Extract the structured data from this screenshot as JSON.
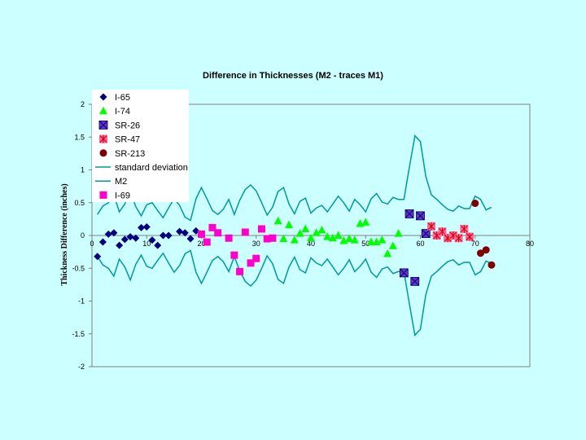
{
  "chart_data": {
    "type": "scatter",
    "title": "Difference in Thicknesses (M2 - traces M1)",
    "xlabel": "",
    "ylabel": "Thickness Difference (inches)",
    "xlim": [
      0,
      80
    ],
    "ylim": [
      -2,
      2
    ],
    "x_ticks": [
      "0",
      "10",
      "20",
      "30",
      "40",
      "50",
      "60",
      "70",
      "80"
    ],
    "y_ticks": [
      "2",
      "1.5",
      "1",
      "0.5",
      "0",
      "-0.5",
      "-1",
      "-1.5",
      "-2"
    ],
    "legend": [
      "I-65",
      "I-74",
      "SR-26",
      "SR-47",
      "SR-213",
      "standard deviation",
      "M2",
      "I-69"
    ],
    "series": [
      {
        "name": "I-65",
        "kind": "marker",
        "marker": "diamond",
        "color": "#000080",
        "points": [
          [
            1,
            -0.32
          ],
          [
            2,
            -0.1
          ],
          [
            3,
            0.02
          ],
          [
            4,
            0.04
          ],
          [
            5,
            -0.15
          ],
          [
            6,
            -0.06
          ],
          [
            7,
            -0.02
          ],
          [
            8,
            -0.04
          ],
          [
            9,
            0.12
          ],
          [
            10,
            0.13
          ],
          [
            11,
            -0.07
          ],
          [
            12,
            -0.15
          ],
          [
            13,
            0.0
          ],
          [
            14,
            0.0
          ],
          [
            16,
            0.06
          ],
          [
            17,
            0.04
          ],
          [
            18,
            -0.05
          ],
          [
            19,
            0.07
          ]
        ]
      },
      {
        "name": "I-74",
        "kind": "marker",
        "marker": "triangle",
        "color": "#00ff00",
        "points": [
          [
            34,
            0.22
          ],
          [
            35,
            -0.05
          ],
          [
            36,
            0.16
          ],
          [
            37,
            -0.07
          ],
          [
            38,
            0.03
          ],
          [
            39,
            0.1
          ],
          [
            40,
            -0.04
          ],
          [
            41,
            0.04
          ],
          [
            42,
            0.08
          ],
          [
            43,
            -0.02
          ],
          [
            44,
            -0.04
          ],
          [
            45,
            0.0
          ],
          [
            46,
            -0.08
          ],
          [
            47,
            -0.05
          ],
          [
            48,
            -0.07
          ],
          [
            49,
            0.18
          ],
          [
            50,
            0.2
          ],
          [
            51,
            -0.1
          ],
          [
            52,
            -0.1
          ],
          [
            53,
            -0.07
          ],
          [
            54,
            -0.28
          ],
          [
            55,
            -0.16
          ],
          [
            56,
            0.03
          ]
        ]
      },
      {
        "name": "SR-26",
        "kind": "marker",
        "marker": "xbox",
        "color": "#6633cc",
        "points": [
          [
            57,
            -0.57
          ],
          [
            58,
            0.33
          ],
          [
            59,
            -0.7
          ],
          [
            60,
            0.3
          ],
          [
            61,
            0.03
          ]
        ]
      },
      {
        "name": "SR-47",
        "kind": "marker",
        "marker": "star",
        "color": "#ff6699",
        "points": [
          [
            62,
            0.14
          ],
          [
            63,
            0.0
          ],
          [
            64,
            0.06
          ],
          [
            65,
            -0.04
          ],
          [
            66,
            0.0
          ],
          [
            67,
            -0.04
          ],
          [
            68,
            0.1
          ],
          [
            69,
            -0.02
          ]
        ]
      },
      {
        "name": "SR-213",
        "kind": "marker",
        "marker": "circle",
        "color": "#800000",
        "points": [
          [
            70,
            0.49
          ],
          [
            71,
            -0.27
          ],
          [
            72,
            -0.22
          ],
          [
            73,
            -0.45
          ]
        ]
      },
      {
        "name": "standard deviation",
        "kind": "line",
        "color": "#009999",
        "points": [
          [
            1,
            0.32
          ],
          [
            2,
            0.45
          ],
          [
            3,
            0.5
          ],
          [
            4,
            0.62
          ],
          [
            5,
            0.36
          ],
          [
            6,
            0.48
          ],
          [
            7,
            0.68
          ],
          [
            8,
            0.44
          ],
          [
            9,
            0.3
          ],
          [
            10,
            0.47
          ],
          [
            11,
            0.5
          ],
          [
            12,
            0.38
          ],
          [
            13,
            0.27
          ],
          [
            14,
            0.42
          ],
          [
            15,
            0.56
          ],
          [
            16,
            0.46
          ],
          [
            17,
            0.28
          ],
          [
            18,
            0.23
          ],
          [
            19,
            0.56
          ],
          [
            20,
            0.73
          ],
          [
            21,
            0.56
          ],
          [
            22,
            0.38
          ],
          [
            23,
            0.32
          ],
          [
            24,
            0.4
          ],
          [
            25,
            0.55
          ],
          [
            26,
            0.32
          ],
          [
            27,
            0.54
          ],
          [
            28,
            0.7
          ],
          [
            29,
            0.77
          ],
          [
            30,
            0.68
          ],
          [
            31,
            0.5
          ],
          [
            32,
            0.31
          ],
          [
            33,
            0.43
          ],
          [
            34,
            0.67
          ],
          [
            35,
            0.73
          ],
          [
            36,
            0.48
          ],
          [
            37,
            0.33
          ],
          [
            38,
            0.52
          ],
          [
            39,
            0.57
          ],
          [
            40,
            0.34
          ],
          [
            41,
            0.42
          ],
          [
            42,
            0.46
          ],
          [
            43,
            0.36
          ],
          [
            44,
            0.48
          ],
          [
            45,
            0.6
          ],
          [
            46,
            0.5
          ],
          [
            47,
            0.37
          ],
          [
            48,
            0.55
          ],
          [
            49,
            0.47
          ],
          [
            50,
            0.36
          ],
          [
            51,
            0.56
          ],
          [
            52,
            0.64
          ],
          [
            53,
            0.51
          ],
          [
            54,
            0.48
          ],
          [
            55,
            0.58
          ],
          [
            56,
            0.55
          ],
          [
            57,
            0.55
          ],
          [
            58,
            1.05
          ],
          [
            59,
            1.52
          ],
          [
            60,
            1.43
          ],
          [
            61,
            0.9
          ],
          [
            62,
            0.62
          ],
          [
            63,
            0.55
          ],
          [
            64,
            0.47
          ],
          [
            65,
            0.4
          ],
          [
            66,
            0.37
          ],
          [
            67,
            0.45
          ],
          [
            68,
            0.41
          ],
          [
            69,
            0.41
          ],
          [
            70,
            0.6
          ],
          [
            71,
            0.55
          ],
          [
            72,
            0.39
          ],
          [
            73,
            0.43
          ]
        ]
      },
      {
        "name": "M2",
        "kind": "line",
        "color": "#009999",
        "points": [
          [
            1,
            -0.32
          ],
          [
            2,
            -0.45
          ],
          [
            3,
            -0.5
          ],
          [
            4,
            -0.62
          ],
          [
            5,
            -0.36
          ],
          [
            6,
            -0.48
          ],
          [
            7,
            -0.68
          ],
          [
            8,
            -0.44
          ],
          [
            9,
            -0.3
          ],
          [
            10,
            -0.47
          ],
          [
            11,
            -0.5
          ],
          [
            12,
            -0.38
          ],
          [
            13,
            -0.27
          ],
          [
            14,
            -0.42
          ],
          [
            15,
            -0.56
          ],
          [
            16,
            -0.46
          ],
          [
            17,
            -0.28
          ],
          [
            18,
            -0.23
          ],
          [
            19,
            -0.56
          ],
          [
            20,
            -0.73
          ],
          [
            21,
            -0.56
          ],
          [
            22,
            -0.38
          ],
          [
            23,
            -0.32
          ],
          [
            24,
            -0.4
          ],
          [
            25,
            -0.55
          ],
          [
            26,
            -0.32
          ],
          [
            27,
            -0.54
          ],
          [
            28,
            -0.7
          ],
          [
            29,
            -0.77
          ],
          [
            30,
            -0.68
          ],
          [
            31,
            -0.5
          ],
          [
            32,
            -0.31
          ],
          [
            33,
            -0.43
          ],
          [
            34,
            -0.67
          ],
          [
            35,
            -0.73
          ],
          [
            36,
            -0.48
          ],
          [
            37,
            -0.33
          ],
          [
            38,
            -0.52
          ],
          [
            39,
            -0.57
          ],
          [
            40,
            -0.34
          ],
          [
            41,
            -0.42
          ],
          [
            42,
            -0.46
          ],
          [
            43,
            -0.36
          ],
          [
            44,
            -0.48
          ],
          [
            45,
            -0.6
          ],
          [
            46,
            -0.5
          ],
          [
            47,
            -0.37
          ],
          [
            48,
            -0.55
          ],
          [
            49,
            -0.47
          ],
          [
            50,
            -0.36
          ],
          [
            51,
            -0.56
          ],
          [
            52,
            -0.64
          ],
          [
            53,
            -0.51
          ],
          [
            54,
            -0.48
          ],
          [
            55,
            -0.58
          ],
          [
            56,
            -0.55
          ],
          [
            57,
            -0.55
          ],
          [
            58,
            -1.05
          ],
          [
            59,
            -1.52
          ],
          [
            60,
            -1.43
          ],
          [
            61,
            -0.9
          ],
          [
            62,
            -0.62
          ],
          [
            63,
            -0.55
          ],
          [
            64,
            -0.47
          ],
          [
            65,
            -0.4
          ],
          [
            66,
            -0.37
          ],
          [
            67,
            -0.45
          ],
          [
            68,
            -0.41
          ],
          [
            69,
            -0.41
          ],
          [
            70,
            -0.6
          ],
          [
            71,
            -0.55
          ],
          [
            72,
            -0.39
          ],
          [
            73,
            -0.43
          ]
        ]
      },
      {
        "name": "I-69",
        "kind": "marker",
        "marker": "square",
        "color": "#ff00cc",
        "points": [
          [
            20,
            0.02
          ],
          [
            21,
            -0.1
          ],
          [
            22,
            0.12
          ],
          [
            23,
            0.04
          ],
          [
            25,
            -0.04
          ],
          [
            26,
            -0.3
          ],
          [
            27,
            -0.55
          ],
          [
            28,
            0.05
          ],
          [
            29,
            -0.42
          ],
          [
            30,
            -0.35
          ],
          [
            31,
            0.1
          ],
          [
            32,
            -0.05
          ],
          [
            33,
            -0.04
          ]
        ]
      }
    ]
  },
  "legend_symbols": {
    "I-65": "diamond",
    "I-74": "triangle",
    "SR-26": "xbox",
    "SR-47": "star",
    "SR-213": "circle",
    "standard deviation": "line",
    "M2": "line",
    "I-69": "square"
  }
}
